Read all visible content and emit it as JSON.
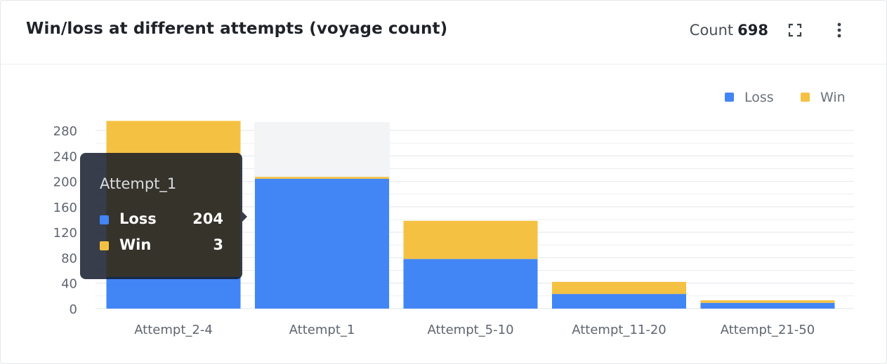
{
  "header": {
    "title": "Win/loss at different attempts (voyage count)",
    "count_label": "Count",
    "count_value": "698",
    "expand_icon": "expand-icon",
    "more_icon": "more-vertical-icon"
  },
  "colors": {
    "loss": "#4285f4",
    "win": "#f4c143",
    "grid": "#e8eaee",
    "highlight": "#f3f4f6"
  },
  "tooltip": {
    "title": "Attempt_1",
    "rows": [
      {
        "name": "Loss",
        "value": "204"
      },
      {
        "name": "Win",
        "value": "3"
      }
    ]
  },
  "chart_data": {
    "type": "bar",
    "stacked": true,
    "categories": [
      "Attempt_2-4",
      "Attempt_1",
      "Attempt_5-10",
      "Attempt_11-20",
      "Attempt_21-50"
    ],
    "series": [
      {
        "name": "Loss",
        "values": [
          50,
          204,
          78,
          23,
          9
        ]
      },
      {
        "name": "Win",
        "values": [
          245,
          3,
          60,
          19,
          4
        ]
      }
    ],
    "ylim": [
      0,
      280
    ],
    "yticks": [
      0,
      40,
      80,
      120,
      160,
      200,
      240,
      280
    ],
    "legend_position": "top-right",
    "highlighted_category": "Attempt_1",
    "grid": true
  }
}
